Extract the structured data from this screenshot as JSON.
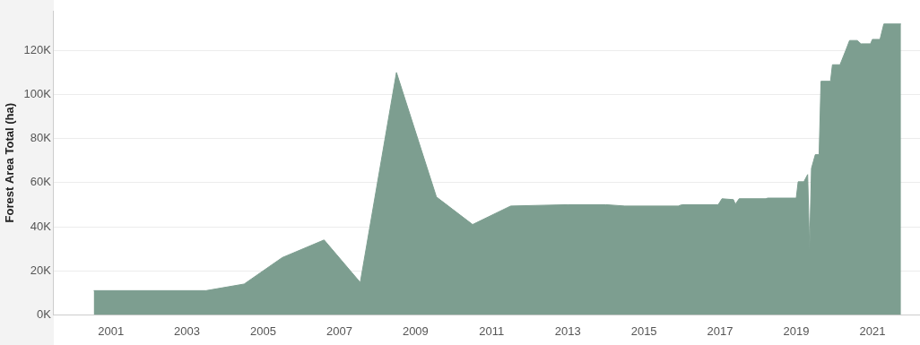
{
  "chart_data": {
    "type": "area",
    "y_label": "Forest Area Total (ha)",
    "x": [
      2000.55,
      2003.5,
      2004.5,
      2005.5,
      2006.6,
      2007.55,
      2008.5,
      2009.55,
      2010.5,
      2011.5,
      2013,
      2014,
      2014.5,
      2015.9,
      2016,
      2016.95,
      2017.05,
      2017.35,
      2017.4,
      2017.5,
      2018.2,
      2018.25,
      2019,
      2019.05,
      2019.2,
      2019.3,
      2019.35,
      2019.4,
      2019.5,
      2019.6,
      2019.65,
      2019.9,
      2019.95,
      2020.15,
      2020.3,
      2020.4,
      2020.6,
      2020.7,
      2020.95,
      2021,
      2021.2,
      2021.3,
      2021.75
    ],
    "values": [
      11000,
      11000,
      14000,
      26000,
      34000,
      14700,
      110000,
      53500,
      41000,
      49400,
      50000,
      50000,
      49400,
      49400,
      50000,
      50000,
      52700,
      52300,
      50200,
      52700,
      52700,
      53000,
      53000,
      60400,
      60400,
      63700,
      29800,
      66500,
      72700,
      72700,
      106000,
      106000,
      113500,
      113500,
      120000,
      124500,
      124500,
      123000,
      123000,
      125000,
      125000,
      132000,
      132000
    ],
    "color": "#7d9e90",
    "xlim": [
      1999.5,
      2022.25
    ],
    "xticks": [
      2001,
      2003,
      2005,
      2007,
      2009,
      2011,
      2013,
      2015,
      2017,
      2019,
      2021
    ],
    "ylim": [
      0,
      138000
    ],
    "yticks": [
      {
        "value": 0,
        "label": "0K"
      },
      {
        "value": 20000,
        "label": "20K"
      },
      {
        "value": 40000,
        "label": "40K"
      },
      {
        "value": 60000,
        "label": "60K"
      },
      {
        "value": 80000,
        "label": "80K"
      },
      {
        "value": 100000,
        "label": "100K"
      },
      {
        "value": 120000,
        "label": "120K"
      }
    ],
    "grid": true
  }
}
